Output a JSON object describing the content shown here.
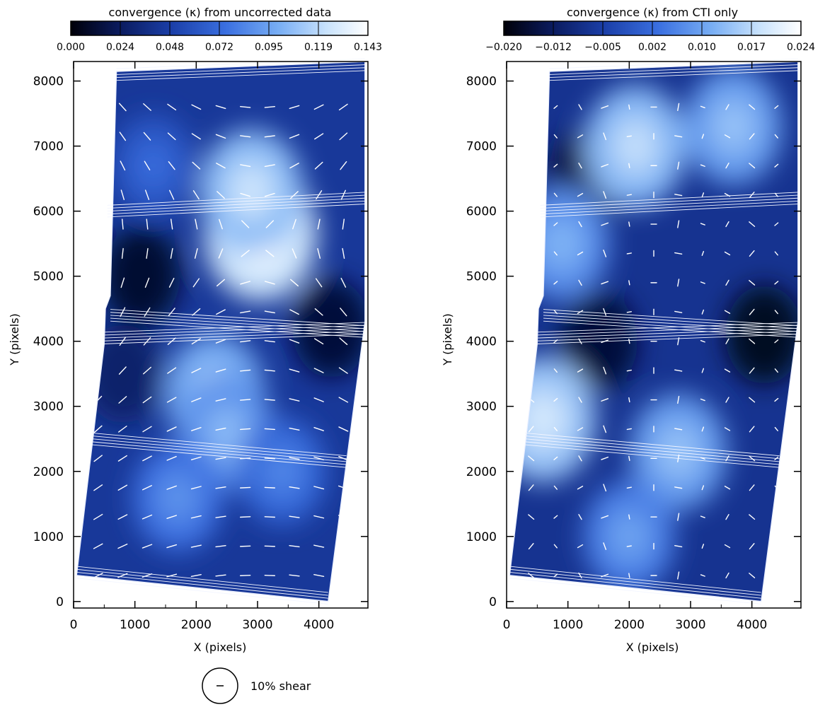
{
  "chart_data": [
    {
      "type": "heatmap",
      "title": "convergence (κ) from uncorrected data",
      "colorbar_ticks": [
        "0.000",
        "0.024",
        "0.048",
        "0.072",
        "0.095",
        "0.119",
        "0.143"
      ],
      "colorbar_range": [
        0.0,
        0.143
      ],
      "xlabel": "X (pixels)",
      "ylabel": "Y (pixels)",
      "xlim": [
        0,
        4800
      ],
      "ylim": [
        -100,
        8300
      ],
      "xticks": [
        0,
        1000,
        2000,
        3000,
        4000
      ],
      "yticks": [
        0,
        1000,
        2000,
        3000,
        4000,
        5000,
        6000,
        7000,
        8000
      ],
      "colormap": [
        "#000008",
        "#0a1a5c",
        "#1b3fa8",
        "#3a6fe0",
        "#78aef4",
        "#c8e2fc",
        "#ffffff"
      ],
      "peaks": [
        {
          "x": 3050,
          "y": 5650,
          "value": 0.143
        },
        {
          "x": 2900,
          "y": 6300,
          "value": 0.12
        },
        {
          "x": 2300,
          "y": 3200,
          "value": 0.11
        },
        {
          "x": 2500,
          "y": 2600,
          "value": 0.1
        },
        {
          "x": 1700,
          "y": 1600,
          "value": 0.085
        },
        {
          "x": 3400,
          "y": 2000,
          "value": 0.08
        },
        {
          "x": 1300,
          "y": 6700,
          "value": 0.07
        }
      ],
      "overlay": "shear-whiskers"
    },
    {
      "type": "heatmap",
      "title": "convergence (κ) from CTI only",
      "colorbar_ticks": [
        "−0.020",
        "−0.012",
        "−0.005",
        "0.002",
        "0.010",
        "0.017",
        "0.024"
      ],
      "colorbar_range": [
        -0.02,
        0.024
      ],
      "xlabel": "X (pixels)",
      "ylabel": "Y (pixels)",
      "xlim": [
        0,
        4800
      ],
      "ylim": [
        -100,
        8300
      ],
      "xticks": [
        0,
        1000,
        2000,
        3000,
        4000
      ],
      "yticks": [
        0,
        1000,
        2000,
        3000,
        4000,
        5000,
        6000,
        7000,
        8000
      ],
      "colormap": [
        "#000008",
        "#0a1a5c",
        "#1b3fa8",
        "#3a6fe0",
        "#78aef4",
        "#c8e2fc",
        "#ffffff"
      ],
      "peaks": [
        {
          "x": 2100,
          "y": 7000,
          "value": 0.016
        },
        {
          "x": 3700,
          "y": 7300,
          "value": 0.012
        },
        {
          "x": 600,
          "y": 2800,
          "value": 0.018
        },
        {
          "x": 900,
          "y": 5500,
          "value": 0.01
        },
        {
          "x": 2800,
          "y": 2300,
          "value": 0.012
        },
        {
          "x": 2000,
          "y": 1000,
          "value": 0.008
        }
      ],
      "overlay": "shear-whiskers"
    }
  ],
  "legend": {
    "label": "10% shear"
  }
}
